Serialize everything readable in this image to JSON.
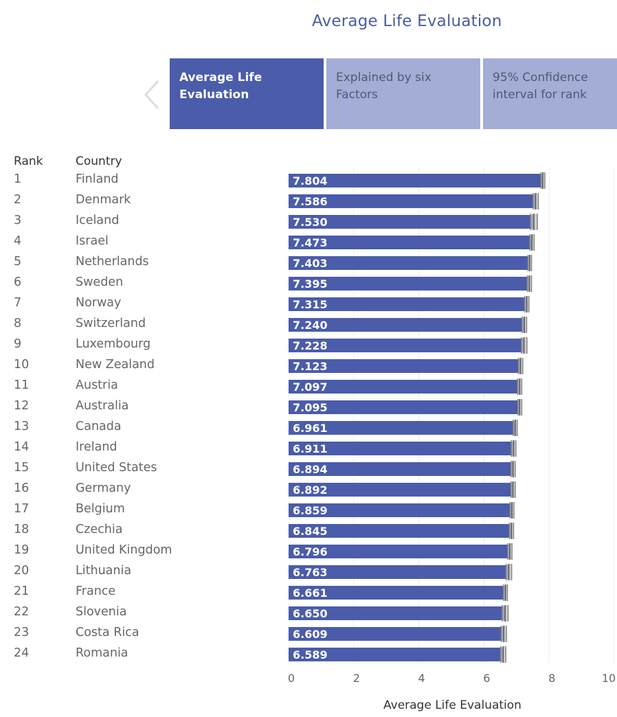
{
  "title": "Average Life Evaluation",
  "tabs": [
    {
      "label": "Average Life Evaluation",
      "line1": "Average Life",
      "line2": "Evaluation",
      "active": true
    },
    {
      "label": "Explained by six Factors",
      "line1": "Explained by six",
      "line2": "Factors",
      "active": false
    },
    {
      "label": "95% Confidence interval for rank",
      "line1": "95% Confidence",
      "line2": "interval for rank",
      "active": false
    }
  ],
  "table": {
    "rank_header": "Rank",
    "country_header": "Country"
  },
  "colors": {
    "bar": "#4a5caa",
    "error_bar": "#888888",
    "active_tab": "#4a5caa",
    "inactive_tab": "#a3add6"
  },
  "chart_data": {
    "type": "bar",
    "orientation": "horizontal",
    "xlabel": "Average Life Evaluation",
    "xlim": [
      0,
      10
    ],
    "xticks": [
      0,
      2,
      4,
      6,
      8,
      10
    ],
    "grid": true,
    "rows": [
      {
        "rank": "1",
        "country": "Finland",
        "value": 7.804,
        "label": "7.804",
        "ci": [
          7.75,
          7.87
        ]
      },
      {
        "rank": "2",
        "country": "Denmark",
        "value": 7.586,
        "label": "7.586",
        "ci": [
          7.51,
          7.67
        ]
      },
      {
        "rank": "3",
        "country": "Iceland",
        "value": 7.53,
        "label": "7.530",
        "ci": [
          7.43,
          7.64
        ]
      },
      {
        "rank": "4",
        "country": "Israel",
        "value": 7.473,
        "label": "7.473",
        "ci": [
          7.41,
          7.54
        ]
      },
      {
        "rank": "5",
        "country": "Netherlands",
        "value": 7.403,
        "label": "7.403",
        "ci": [
          7.35,
          7.46
        ]
      },
      {
        "rank": "6",
        "country": "Sweden",
        "value": 7.395,
        "label": "7.395",
        "ci": [
          7.33,
          7.46
        ]
      },
      {
        "rank": "7",
        "country": "Norway",
        "value": 7.315,
        "label": "7.315",
        "ci": [
          7.25,
          7.38
        ]
      },
      {
        "rank": "8",
        "country": "Switzerland",
        "value": 7.24,
        "label": "7.240",
        "ci": [
          7.17,
          7.31
        ]
      },
      {
        "rank": "9",
        "country": "Luxembourg",
        "value": 7.228,
        "label": "7.228",
        "ci": [
          7.15,
          7.32
        ]
      },
      {
        "rank": "10",
        "country": "New Zealand",
        "value": 7.123,
        "label": "7.123",
        "ci": [
          7.06,
          7.19
        ]
      },
      {
        "rank": "11",
        "country": "Austria",
        "value": 7.097,
        "label": "7.097",
        "ci": [
          7.03,
          7.16
        ]
      },
      {
        "rank": "12",
        "country": "Australia",
        "value": 7.095,
        "label": "7.095",
        "ci": [
          7.04,
          7.16
        ]
      },
      {
        "rank": "13",
        "country": "Canada",
        "value": 6.961,
        "label": "6.961",
        "ci": [
          6.9,
          7.02
        ]
      },
      {
        "rank": "14",
        "country": "Ireland",
        "value": 6.911,
        "label": "6.911",
        "ci": [
          6.84,
          6.98
        ]
      },
      {
        "rank": "15",
        "country": "United States",
        "value": 6.894,
        "label": "6.894",
        "ci": [
          6.83,
          6.96
        ]
      },
      {
        "rank": "16",
        "country": "Germany",
        "value": 6.892,
        "label": "6.892",
        "ci": [
          6.83,
          6.96
        ]
      },
      {
        "rank": "17",
        "country": "Belgium",
        "value": 6.859,
        "label": "6.859",
        "ci": [
          6.8,
          6.92
        ]
      },
      {
        "rank": "18",
        "country": "Czechia",
        "value": 6.845,
        "label": "6.845",
        "ci": [
          6.78,
          6.91
        ]
      },
      {
        "rank": "19",
        "country": "United Kingdom",
        "value": 6.796,
        "label": "6.796",
        "ci": [
          6.73,
          6.86
        ]
      },
      {
        "rank": "20",
        "country": "Lithuania",
        "value": 6.763,
        "label": "6.763",
        "ci": [
          6.68,
          6.85
        ]
      },
      {
        "rank": "21",
        "country": "France",
        "value": 6.661,
        "label": "6.661",
        "ci": [
          6.6,
          6.72
        ]
      },
      {
        "rank": "22",
        "country": "Slovenia",
        "value": 6.65,
        "label": "6.650",
        "ci": [
          6.56,
          6.74
        ]
      },
      {
        "rank": "23",
        "country": "Costa Rica",
        "value": 6.609,
        "label": "6.609",
        "ci": [
          6.53,
          6.69
        ]
      },
      {
        "rank": "24",
        "country": "Romania",
        "value": 6.589,
        "label": "6.589",
        "ci": [
          6.51,
          6.67
        ]
      }
    ]
  }
}
